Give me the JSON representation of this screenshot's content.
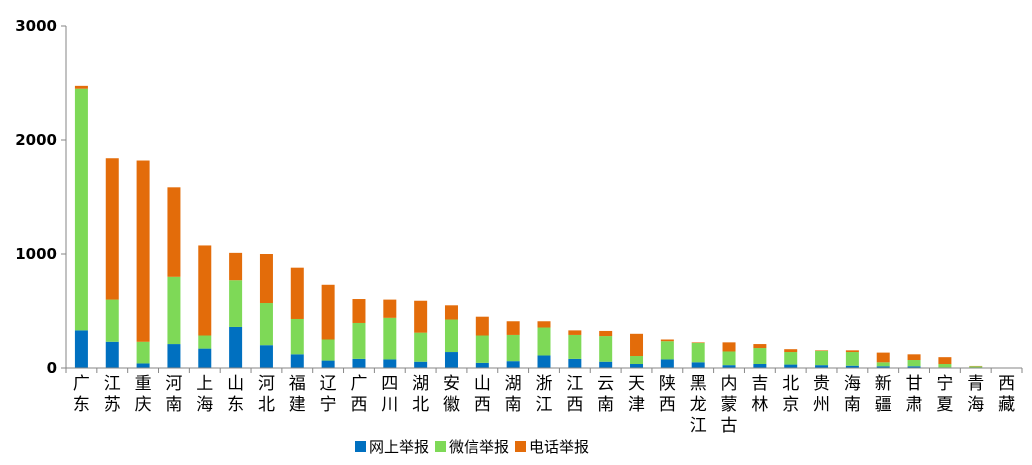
{
  "chart_data": {
    "type": "bar",
    "stacked": true,
    "title": "",
    "xlabel": "",
    "ylabel": "",
    "ylim": [
      0,
      3000
    ],
    "yticks": [
      0,
      1000,
      2000,
      3000
    ],
    "grid": false,
    "legend_position": "bottom",
    "categories": [
      "广东",
      "江苏",
      "重庆",
      "河南",
      "上海",
      "山东",
      "河北",
      "福建",
      "辽宁",
      "广西",
      "四川",
      "湖北",
      "安徽",
      "山西",
      "湖南",
      "浙江",
      "江西",
      "云南",
      "天津",
      "陕西",
      "黑龙江",
      "内蒙古",
      "吉林",
      "北京",
      "贵州",
      "海南",
      "新疆",
      "甘肃",
      "宁夏",
      "青海",
      "西藏"
    ],
    "series": [
      {
        "name": "网上举报",
        "color": "#0070C0",
        "values": [
          330,
          230,
          40,
          210,
          170,
          360,
          200,
          120,
          65,
          80,
          75,
          55,
          140,
          45,
          60,
          110,
          80,
          55,
          35,
          75,
          50,
          25,
          35,
          30,
          25,
          20,
          15,
          15,
          5,
          3,
          1
        ]
      },
      {
        "name": "微信举报",
        "color": "#7ED957",
        "values": [
          2120,
          370,
          190,
          590,
          115,
          410,
          370,
          310,
          185,
          315,
          365,
          255,
          285,
          240,
          230,
          245,
          210,
          225,
          70,
          160,
          170,
          120,
          140,
          110,
          125,
          120,
          35,
          55,
          30,
          12,
          2
        ]
      },
      {
        "name": "电话举报",
        "color": "#E36C0A",
        "values": [
          25,
          1240,
          1590,
          785,
          790,
          240,
          430,
          450,
          480,
          210,
          160,
          280,
          125,
          165,
          120,
          55,
          40,
          45,
          195,
          15,
          5,
          80,
          35,
          25,
          5,
          15,
          85,
          50,
          60,
          3,
          0
        ]
      }
    ]
  }
}
